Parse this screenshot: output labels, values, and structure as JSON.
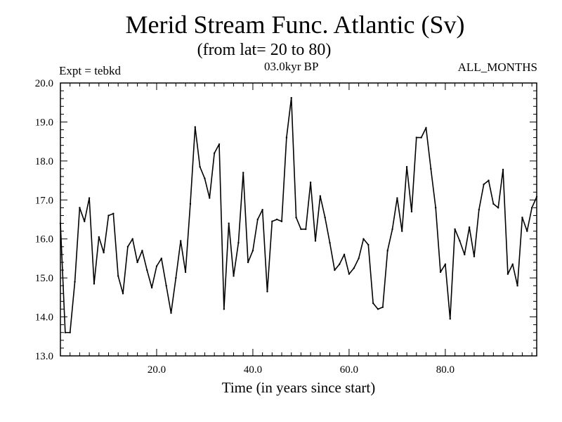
{
  "chart_data": {
    "type": "line",
    "title": "Merid Stream Func. Atlantic (Sv)",
    "subtitle": "(from lat= 20 to 80)",
    "annotations": {
      "left": "Expt = tebkd",
      "center": "03.0kyr BP",
      "right": "ALL_MONTHS"
    },
    "xlabel": "Time (in years since start)",
    "ylabel": "",
    "xlim": [
      0,
      99
    ],
    "ylim": [
      13.0,
      20.0
    ],
    "x_ticks": [
      {
        "value": 20,
        "label": "20.0"
      },
      {
        "value": 40,
        "label": "40.0"
      },
      {
        "value": 60,
        "label": "60.0"
      },
      {
        "value": 80,
        "label": "80.0"
      }
    ],
    "y_ticks": [
      {
        "value": 13,
        "label": "13.0"
      },
      {
        "value": 14,
        "label": "14.0"
      },
      {
        "value": 15,
        "label": "15.0"
      },
      {
        "value": 16,
        "label": "16.0"
      },
      {
        "value": 17,
        "label": "17.0"
      },
      {
        "value": 18,
        "label": "18.0"
      },
      {
        "value": 19,
        "label": "19.0"
      },
      {
        "value": 20,
        "label": "20.0"
      }
    ],
    "series": [
      {
        "name": "Merid Stream Func.",
        "color": "#000000",
        "x": [
          0,
          1,
          2,
          3,
          4,
          5,
          6,
          7,
          8,
          9,
          10,
          11,
          12,
          13,
          14,
          15,
          16,
          17,
          18,
          19,
          20,
          21,
          22,
          23,
          24,
          25,
          26,
          27,
          28,
          29,
          30,
          31,
          32,
          33,
          34,
          35,
          36,
          37,
          38,
          39,
          40,
          41,
          42,
          43,
          44,
          45,
          46,
          47,
          48,
          49,
          50,
          51,
          52,
          53,
          54,
          55,
          56,
          57,
          58,
          59,
          60,
          61,
          62,
          63,
          64,
          65,
          66,
          67,
          68,
          69,
          70,
          71,
          72,
          73,
          74,
          75,
          76,
          77,
          78,
          79,
          80,
          81,
          82,
          83,
          84,
          85,
          86,
          87,
          88,
          89,
          90,
          91,
          92,
          93,
          94,
          95,
          96,
          97,
          98,
          99
        ],
        "values": [
          16.4,
          13.6,
          13.6,
          14.9,
          16.8,
          16.45,
          17.05,
          14.85,
          16.05,
          15.65,
          16.6,
          16.65,
          15.05,
          14.6,
          15.8,
          16.0,
          15.4,
          15.7,
          15.2,
          14.75,
          15.3,
          15.5,
          14.8,
          14.1,
          15.0,
          15.95,
          15.15,
          16.9,
          18.87,
          17.85,
          17.55,
          17.05,
          18.2,
          18.43,
          14.2,
          16.4,
          15.05,
          15.9,
          17.7,
          15.4,
          15.7,
          16.5,
          16.75,
          14.65,
          16.45,
          16.5,
          16.45,
          18.6,
          19.62,
          16.55,
          16.25,
          16.25,
          17.45,
          15.95,
          17.1,
          16.55,
          15.9,
          15.2,
          15.35,
          15.6,
          15.1,
          15.25,
          15.5,
          16.0,
          15.85,
          14.35,
          14.2,
          14.25,
          15.7,
          16.25,
          17.05,
          16.2,
          17.85,
          16.7,
          18.6,
          18.6,
          18.85,
          17.8,
          16.8,
          15.15,
          15.35,
          13.95,
          16.25,
          15.95,
          15.6,
          16.3,
          15.55,
          16.75,
          17.4,
          17.5,
          16.9,
          16.8,
          17.78,
          15.1,
          15.35,
          14.8,
          16.55,
          16.2,
          16.8,
          17.08
        ]
      }
    ]
  }
}
